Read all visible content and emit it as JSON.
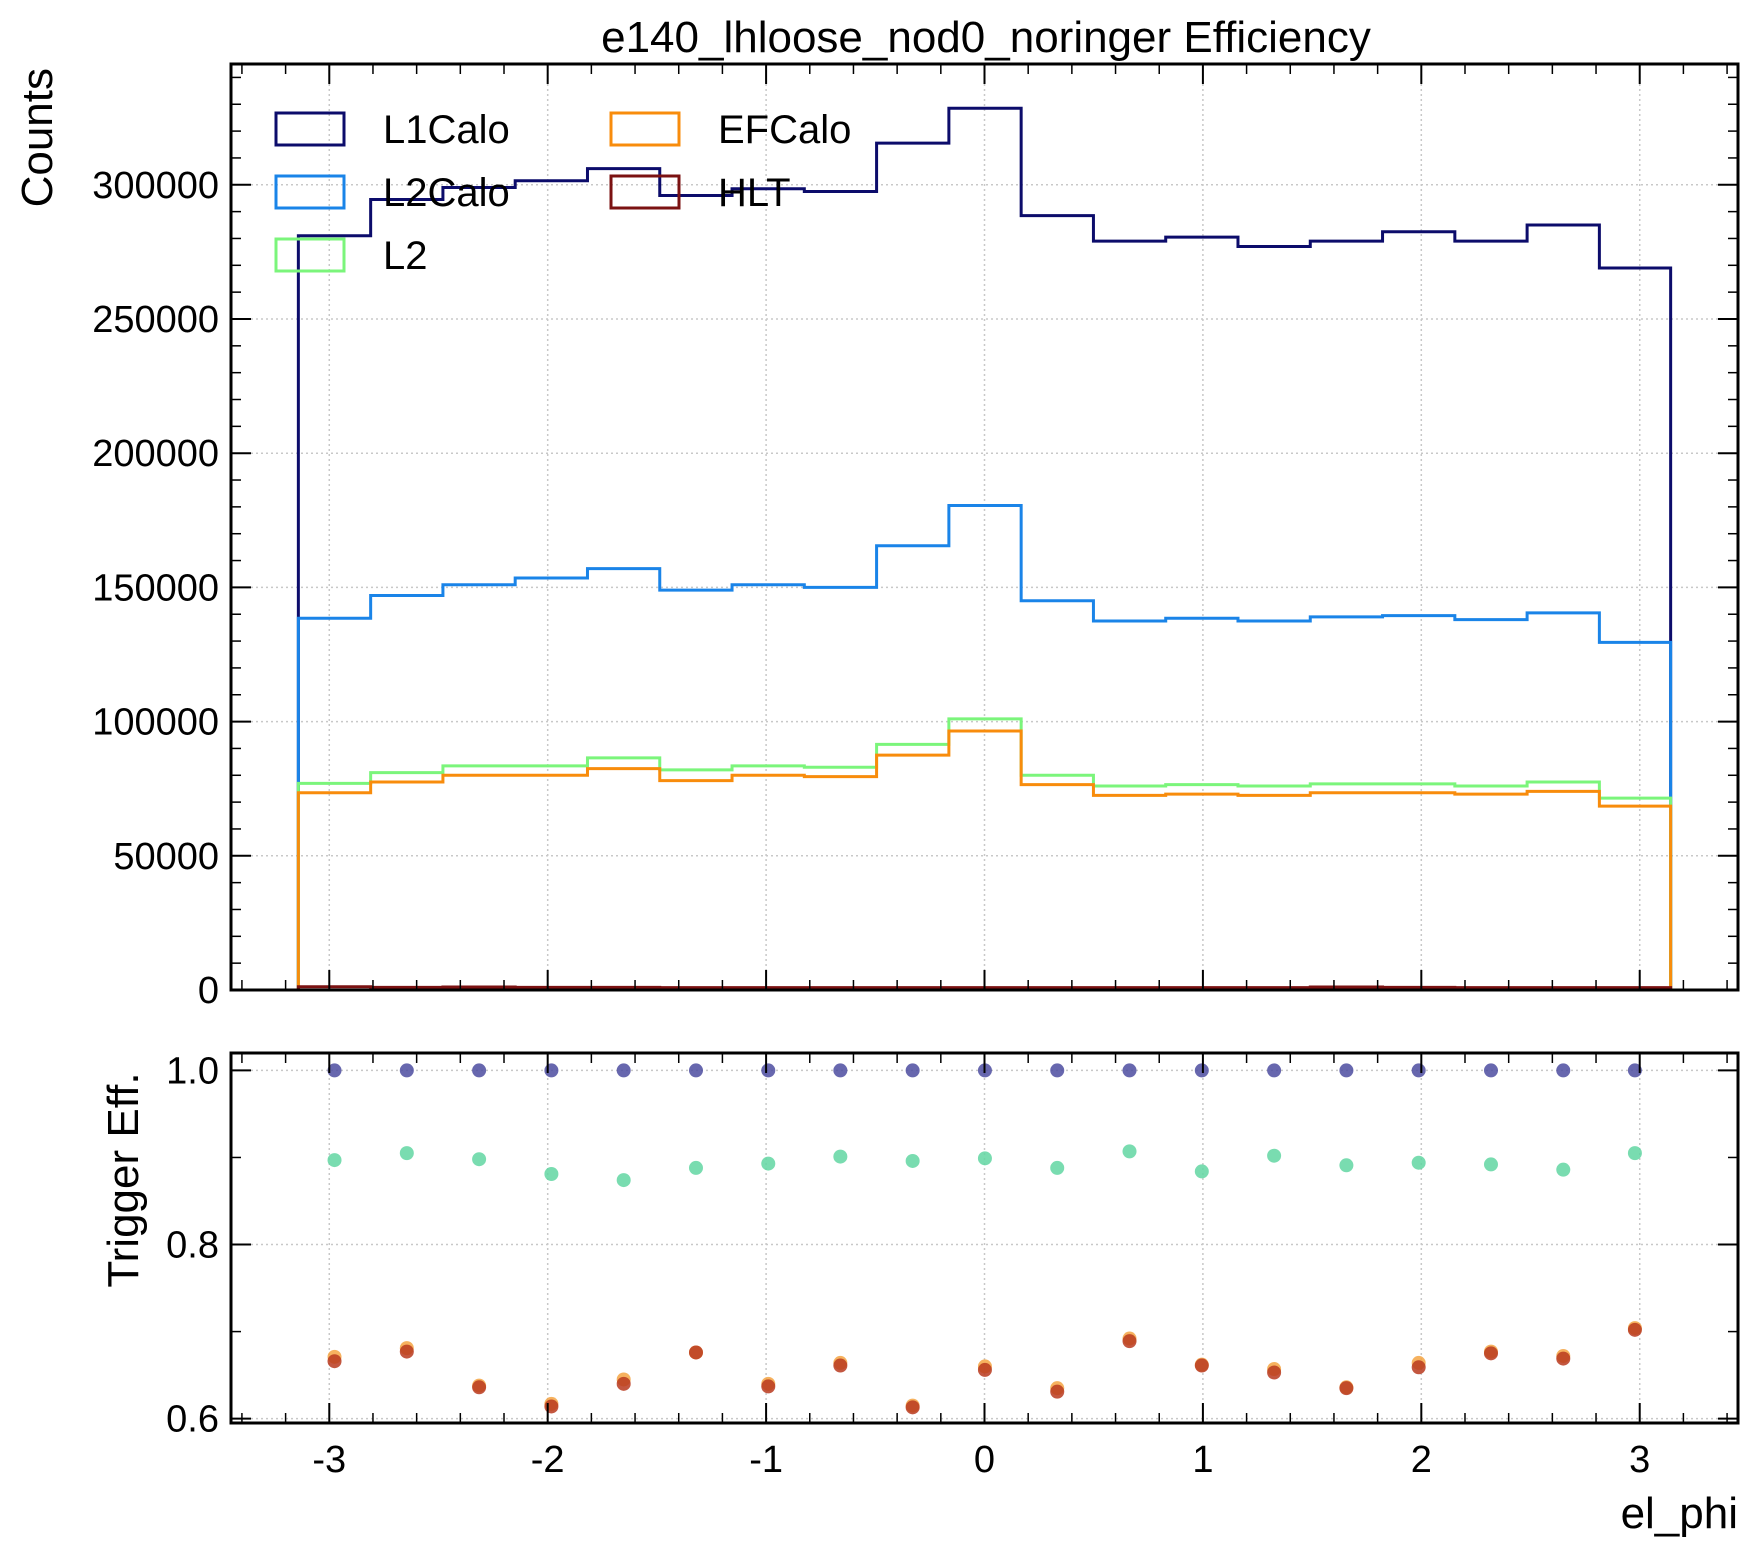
{
  "chart_data": [
    {
      "type": "line",
      "step": "histogram",
      "title": "e140_lhloose_nod0_noringer Efficiency",
      "ylabel": "Counts",
      "xlabel": "",
      "xlim": [
        -3.45,
        3.45
      ],
      "ylim": [
        0,
        345000
      ],
      "grid": true,
      "legend_position": "top-left",
      "y_ticks": [
        0,
        50000,
        100000,
        150000,
        200000,
        250000,
        300000
      ],
      "y_tick_labels": [
        "0",
        "50000",
        "100000",
        "150000",
        "200000",
        "250000",
        "300000"
      ],
      "bin_edges": [
        -3.1416,
        -2.8106,
        -2.4797,
        -2.1488,
        -1.8178,
        -1.4869,
        -1.1559,
        -0.825,
        -0.4941,
        -0.1631,
        0.1678,
        0.4988,
        0.8297,
        1.1606,
        1.4916,
        1.8225,
        2.1535,
        2.4844,
        2.8153,
        3.1416
      ],
      "series": [
        {
          "name": "L1Calo",
          "color": "#0c0c6b",
          "values": [
            281000,
            294500,
            299000,
            301500,
            306000,
            296000,
            298500,
            297500,
            315500,
            328500,
            288500,
            279000,
            280500,
            277000,
            279000,
            282500,
            279000,
            285000,
            269000
          ]
        },
        {
          "name": "L2Calo",
          "color": "#1a84e8",
          "values": [
            138500,
            147000,
            151000,
            153500,
            157000,
            149000,
            151000,
            150000,
            165500,
            180500,
            145000,
            137500,
            138500,
            137500,
            139000,
            139500,
            138000,
            140500,
            129500
          ]
        },
        {
          "name": "L2",
          "color": "#7bf57b",
          "values": [
            77000,
            81000,
            83500,
            83500,
            86500,
            82000,
            83500,
            83000,
            91500,
            101000,
            80000,
            76000,
            76500,
            76000,
            76800,
            76800,
            76000,
            77500,
            71500
          ]
        },
        {
          "name": "EFCalo",
          "color": "#f88c0c",
          "values": [
            73500,
            77500,
            80000,
            80000,
            82500,
            78000,
            80000,
            79500,
            87500,
            96500,
            76500,
            72500,
            73000,
            72500,
            73500,
            73500,
            73000,
            74000,
            68500
          ]
        },
        {
          "name": "HLT",
          "color": "#7b1212",
          "values": [
            1200,
            1000,
            1100,
            1000,
            1000,
            900,
            900,
            900,
            900,
            900,
            900,
            900,
            900,
            900,
            1100,
            1000,
            900,
            900,
            900
          ]
        }
      ]
    },
    {
      "type": "scatter",
      "ylabel": "Trigger Eff.",
      "xlabel": "el_phi",
      "xlim": [
        -3.45,
        3.45
      ],
      "ylim": [
        0.595,
        1.02
      ],
      "grid": true,
      "x_ticks": [
        -3,
        -2,
        -1,
        0,
        1,
        2,
        3
      ],
      "x_tick_labels": [
        "-3",
        "-2",
        "-1",
        "0",
        "1",
        "2",
        "3"
      ],
      "y_ticks": [
        0.6,
        0.8,
        1.0
      ],
      "y_tick_labels": [
        "0.6",
        "0.8",
        "1.0"
      ],
      "x": [
        -2.976,
        -2.645,
        -2.314,
        -1.983,
        -1.652,
        -1.321,
        -0.99,
        -0.66,
        -0.329,
        0.002,
        0.333,
        0.664,
        0.995,
        1.326,
        1.657,
        1.988,
        2.319,
        2.65,
        2.978
      ],
      "series": [
        {
          "color": "#4c4ca0",
          "values": [
            1.0,
            1.0,
            1.0,
            1.0,
            1.0,
            1.0,
            1.0,
            1.0,
            1.0,
            1.0,
            1.0,
            1.0,
            1.0,
            1.0,
            1.0,
            1.0,
            1.0,
            1.0,
            1.0
          ]
        },
        {
          "color": "#62d6a2",
          "values": [
            0.897,
            0.905,
            0.898,
            0.881,
            0.874,
            0.888,
            0.893,
            0.901,
            0.896,
            0.899,
            0.888,
            0.907,
            0.884,
            0.902,
            0.891,
            0.894,
            0.892,
            0.886,
            0.905
          ]
        },
        {
          "color": "#f5a443",
          "values": [
            0.671,
            0.681,
            0.638,
            0.617,
            0.645,
            0.676,
            0.64,
            0.664,
            0.615,
            0.66,
            0.635,
            0.692,
            0.662,
            0.657,
            0.636,
            0.664,
            0.677,
            0.672,
            0.704
          ]
        },
        {
          "color": "#b83a1e",
          "values": [
            0.666,
            0.677,
            0.636,
            0.614,
            0.64,
            0.676,
            0.637,
            0.661,
            0.613,
            0.656,
            0.631,
            0.689,
            0.661,
            0.653,
            0.635,
            0.659,
            0.675,
            0.669,
            0.702
          ]
        }
      ]
    }
  ]
}
